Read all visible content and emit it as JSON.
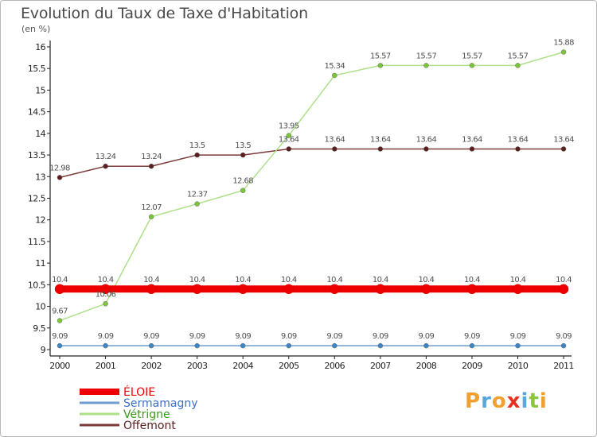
{
  "title": "Evolution du Taux de Taxe d'Habitation",
  "unit_label": "(en %)",
  "logo": {
    "text": "Proxiti",
    "letters": [
      {
        "ch": "P",
        "color": "#f0a030"
      },
      {
        "ch": "r",
        "color": "#58a8e0"
      },
      {
        "ch": "o",
        "color": "#f0a030"
      },
      {
        "ch": "x",
        "color": "#e83020"
      },
      {
        "ch": "i",
        "color": "#58a8e0"
      },
      {
        "ch": "t",
        "color": "#8cc63e"
      },
      {
        "ch": "i",
        "color": "#f0a030"
      }
    ]
  },
  "chart_data": {
    "type": "line",
    "x": [
      "2000",
      "2001",
      "2002",
      "2003",
      "2004",
      "2005",
      "2006",
      "2007",
      "2008",
      "2009",
      "2010",
      "2011"
    ],
    "y_ticks": [
      "9",
      "9.5",
      "10",
      "10.5",
      "11",
      "11.5",
      "12",
      "12.5",
      "13",
      "13.5",
      "14",
      "14.5",
      "15",
      "15.5",
      "16"
    ],
    "ylim": [
      9,
      16
    ],
    "grid": false,
    "legend_position": "bottom-left",
    "series": [
      {
        "name": "ÉLOIE",
        "color": "#ee0000",
        "line_width": 9,
        "marker_size": 6,
        "values": [
          10.4,
          10.4,
          10.4,
          10.4,
          10.4,
          10.4,
          10.4,
          10.4,
          10.4,
          10.4,
          10.4,
          10.4
        ],
        "labels": [
          "10.4",
          "10.4",
          "10.4",
          "10.4",
          "10.4",
          "10.4",
          "10.4",
          "10.4",
          "10.4",
          "10.4",
          "10.4",
          "10.4"
        ]
      },
      {
        "name": "Sermamagny",
        "color": "#6b9ccb",
        "marker_color": "#3d86c6",
        "line_width": 1.5,
        "marker_size": 3,
        "values": [
          9.09,
          9.09,
          9.09,
          9.09,
          9.09,
          9.09,
          9.09,
          9.09,
          9.09,
          9.09,
          9.09,
          9.09
        ],
        "labels": [
          "9.09",
          "9.09",
          "9.09",
          "9.09",
          "9.09",
          "9.09",
          "9.09",
          "9.09",
          "9.09",
          "9.09",
          "9.09",
          "9.09"
        ]
      },
      {
        "name": "Vétrigne",
        "color": "#aee08a",
        "marker_color": "#7cc43c",
        "line_width": 1.5,
        "marker_size": 3,
        "values": [
          9.67,
          10.06,
          12.07,
          12.37,
          12.68,
          13.95,
          15.34,
          15.57,
          15.57,
          15.57,
          15.57,
          15.88
        ],
        "labels": [
          "9.67",
          "10.06",
          "12.07",
          "12.37",
          "12.68",
          "13.95",
          "15.34",
          "15.57",
          "15.57",
          "15.57",
          "15.57",
          "15.88"
        ]
      },
      {
        "name": "Offemont",
        "color": "#7a3a3a",
        "marker_color": "#5a1f1f",
        "line_width": 1.5,
        "marker_size": 3,
        "values": [
          12.98,
          13.24,
          13.24,
          13.5,
          13.5,
          13.64,
          13.64,
          13.64,
          13.64,
          13.64,
          13.64,
          13.64
        ],
        "labels": [
          "12.98",
          "13.24",
          "13.24",
          "13.5",
          "13.5",
          "13.64",
          "13.64",
          "13.64",
          "13.64",
          "13.64",
          "13.64",
          "13.64"
        ]
      }
    ]
  }
}
